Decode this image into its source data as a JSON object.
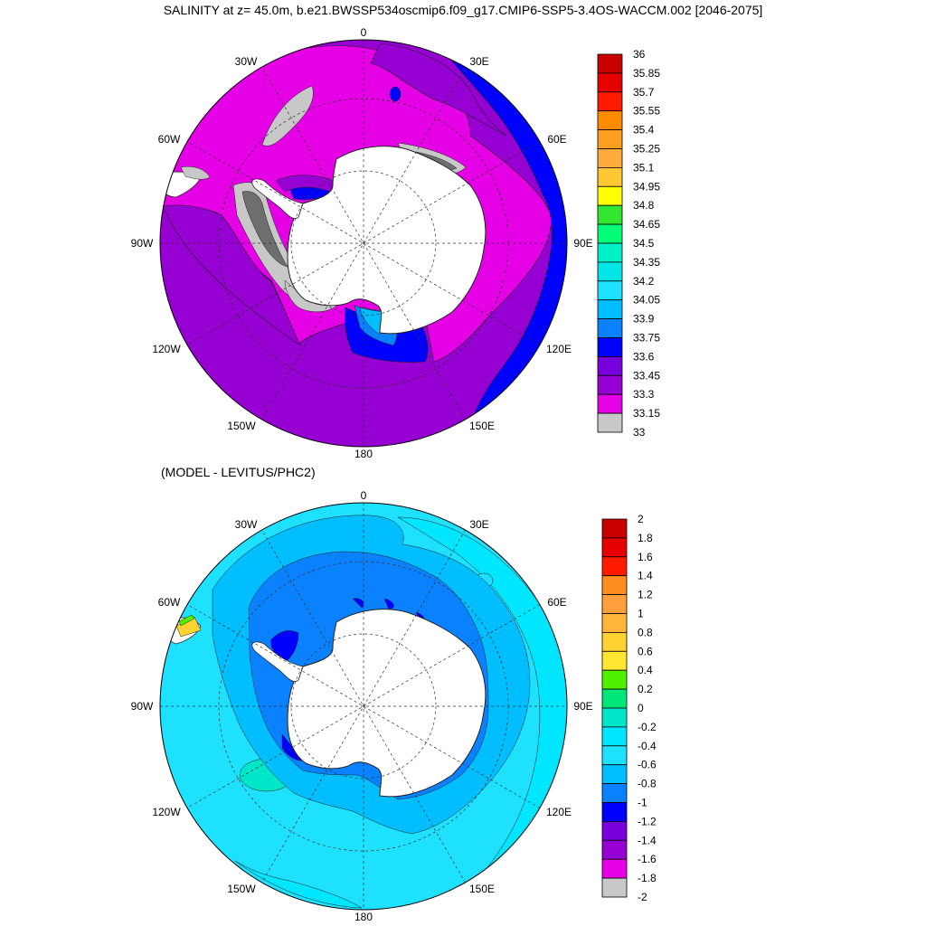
{
  "title": "SALINITY at z=  45.0m, b.e21.BWSSP534oscmip6.f09_g17.CMIP6-SSP5-3.4OS-WACCM.002 [2046-2075]",
  "subtitle": "(MODEL - LEVITUS/PHC2)",
  "longitude_labels": {
    "n": "0",
    "ne1": "30E",
    "ne2": "60E",
    "e": "90E",
    "se1": "120E",
    "se2": "150E",
    "s": "180",
    "sw1": "150W",
    "sw2": "120W",
    "w": "90W",
    "nw2": "60W",
    "nw1": "30W"
  },
  "top_colorbar": {
    "labels": [
      "36",
      "35.85",
      "35.7",
      "35.55",
      "35.4",
      "35.25",
      "35.1",
      "34.95",
      "34.8",
      "34.65",
      "34.5",
      "34.35",
      "34.2",
      "34.05",
      "33.9",
      "33.75",
      "33.6",
      "33.45",
      "33.3",
      "33.15",
      "33"
    ],
    "colors": [
      "#c80000",
      "#e60000",
      "#ff1a00",
      "#ff8c00",
      "#ff9e1e",
      "#ffaa3c",
      "#ffc832",
      "#ffff00",
      "#32e632",
      "#00ff78",
      "#00f0c8",
      "#00e6e6",
      "#1ee1ff",
      "#00beff",
      "#0a82ff",
      "#0000ff",
      "#7800dc",
      "#9600d2",
      "#e600e6",
      "#c8c8c8",
      "#6e6e6e"
    ]
  },
  "bottom_colorbar": {
    "labels": [
      "2",
      "1.8",
      "1.6",
      "1.4",
      "1.2",
      "1",
      "0.8",
      "0.6",
      "0.4",
      "0.2",
      "0",
      "-0.2",
      "-0.4",
      "-0.6",
      "-0.8",
      "-1",
      "-1.2",
      "-1.4",
      "-1.6",
      "-1.8",
      "-2"
    ],
    "colors": [
      "#c80000",
      "#e60000",
      "#ff1a00",
      "#ff8c1e",
      "#ffa03c",
      "#ffb43c",
      "#ffd232",
      "#ffe632",
      "#50f000",
      "#00e678",
      "#00e6c8",
      "#00e6ff",
      "#1ee1ff",
      "#00beff",
      "#0a82ff",
      "#0000ff",
      "#7800dc",
      "#9600d2",
      "#e600e6",
      "#c8c8c8",
      "#6e6e6e"
    ]
  }
}
